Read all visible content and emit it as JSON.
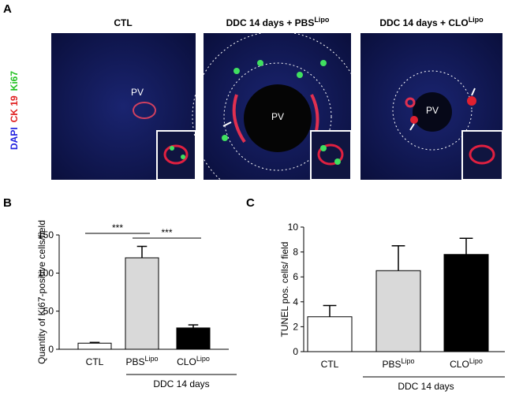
{
  "panel_a": {
    "label": "A",
    "columns": [
      {
        "title": "CTL",
        "superscript": null,
        "pv": [
          "PV"
        ]
      },
      {
        "title": "DDC 14 days + PBS",
        "superscript": "Lipo",
        "pv": [
          "PV"
        ]
      },
      {
        "title": "DDC 14 days + CLO",
        "superscript": "Lipo",
        "pv": [
          "PV"
        ]
      }
    ],
    "stain_labels": [
      {
        "text": "DAPI",
        "color": "#2020e0"
      },
      {
        "text": "CK 19",
        "color": "#e02020"
      },
      {
        "text": "Ki67",
        "color": "#20c020"
      }
    ]
  },
  "chart_data": [
    {
      "type": "bar",
      "panel_label": "B",
      "y_label": "Quantity of Ki67-positive cells/field",
      "categories": [
        "CTL",
        "PBS",
        "CLO"
      ],
      "category_superscripts": [
        null,
        "Lipo",
        "Lipo"
      ],
      "values": [
        8,
        120,
        28
      ],
      "errors": [
        1,
        15,
        4
      ],
      "colors": [
        "#ffffff",
        "#d9d9d9",
        "#000000"
      ],
      "ylim": [
        0,
        150
      ],
      "yticks": [
        0,
        50,
        100,
        150
      ],
      "significance": [
        {
          "from": 0,
          "to": 1,
          "label": "***"
        },
        {
          "from": 1,
          "to": 2,
          "label": "***"
        }
      ],
      "group_label": "DDC 14 days"
    },
    {
      "type": "bar",
      "panel_label": "C",
      "y_label": "TUNEL pos. cells/ field",
      "categories": [
        "CTL",
        "PBS",
        "CLO"
      ],
      "category_superscripts": [
        null,
        "Lipo",
        "Lipo"
      ],
      "values": [
        2.8,
        6.5,
        7.8
      ],
      "errors": [
        0.9,
        2.0,
        1.3
      ],
      "colors": [
        "#ffffff",
        "#d9d9d9",
        "#000000"
      ],
      "ylim": [
        0,
        10
      ],
      "yticks": [
        0,
        2,
        4,
        6,
        8,
        10
      ],
      "significance": [],
      "group_label": "DDC 14 days"
    }
  ]
}
